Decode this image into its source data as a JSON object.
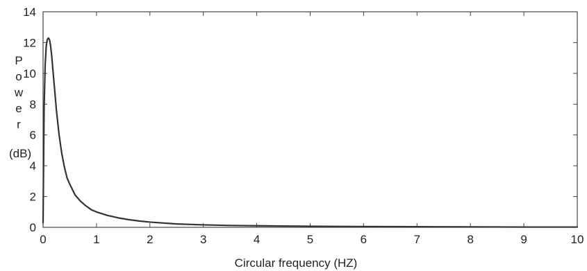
{
  "chart_data": {
    "type": "line",
    "title": "",
    "xlabel": "Circular frequency (HZ)",
    "ylabel_lines": [
      "P",
      "o",
      "w",
      "e",
      "r",
      "(dB)"
    ],
    "xlim": [
      0,
      10
    ],
    "ylim": [
      0,
      14
    ],
    "xticks": [
      0,
      1,
      2,
      3,
      4,
      5,
      6,
      7,
      8,
      9,
      10
    ],
    "yticks": [
      0,
      2,
      4,
      6,
      8,
      10,
      12,
      14
    ],
    "grid": false,
    "legend": "none",
    "series": [
      {
        "color": "#333333",
        "x": [
          0.0,
          0.02,
          0.04,
          0.06,
          0.08,
          0.1,
          0.12,
          0.14,
          0.16,
          0.18,
          0.2,
          0.25,
          0.3,
          0.35,
          0.4,
          0.45,
          0.5,
          0.6,
          0.7,
          0.8,
          0.9,
          1.0,
          1.2,
          1.4,
          1.6,
          1.8,
          2.0,
          2.5,
          3.0,
          3.5,
          4.0,
          5.0,
          6.0,
          7.0,
          8.0,
          9.0,
          10.0
        ],
        "y": [
          0.3,
          7.8,
          10.6,
          11.8,
          12.2,
          12.3,
          12.2,
          11.8,
          11.2,
          10.4,
          9.6,
          7.6,
          6.0,
          4.8,
          3.9,
          3.2,
          2.8,
          2.1,
          1.7,
          1.4,
          1.15,
          1.0,
          0.78,
          0.62,
          0.5,
          0.41,
          0.34,
          0.22,
          0.16,
          0.12,
          0.1,
          0.07,
          0.05,
          0.04,
          0.03,
          0.02,
          0.02
        ]
      }
    ]
  }
}
